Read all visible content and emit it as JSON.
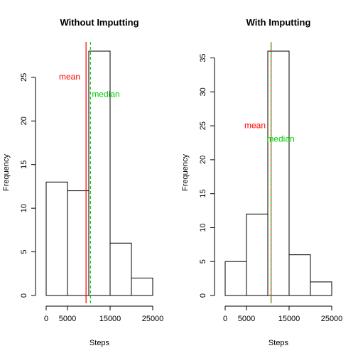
{
  "chart_data": [
    {
      "type": "bar",
      "title": "Without Imputting",
      "xlabel": "Steps",
      "ylabel": "Frequency",
      "bin_edges": [
        0,
        5000,
        10000,
        15000,
        20000,
        25000
      ],
      "values": [
        13,
        12,
        28,
        6,
        2
      ],
      "x_ticks": [
        0,
        5000,
        15000,
        25000
      ],
      "y_ticks": [
        0,
        5,
        10,
        15,
        20,
        25
      ],
      "ylim": [
        0,
        28
      ],
      "mean": 9354,
      "median": 10395,
      "mean_label": "mean",
      "median_label": "median",
      "mean_label_pos": [
        5500,
        25
      ],
      "median_label_pos": [
        14000,
        23
      ],
      "mean_color": "#ff0000",
      "median_color": "#00cc00"
    },
    {
      "type": "bar",
      "title": "With Imputting",
      "xlabel": "Steps",
      "ylabel": "Frequency",
      "bin_edges": [
        0,
        5000,
        10000,
        15000,
        20000,
        25000
      ],
      "values": [
        5,
        12,
        36,
        6,
        2
      ],
      "x_ticks": [
        0,
        5000,
        15000,
        25000
      ],
      "y_ticks": [
        0,
        5,
        10,
        15,
        20,
        25,
        30,
        35
      ],
      "ylim": [
        0,
        36
      ],
      "mean": 10766,
      "median": 10766,
      "mean_label": "mean",
      "median_label": "median",
      "mean_label_pos": [
        7000,
        25
      ],
      "median_label_pos": [
        13000,
        23
      ],
      "mean_color": "#ff0000",
      "median_color": "#00cc00"
    }
  ]
}
